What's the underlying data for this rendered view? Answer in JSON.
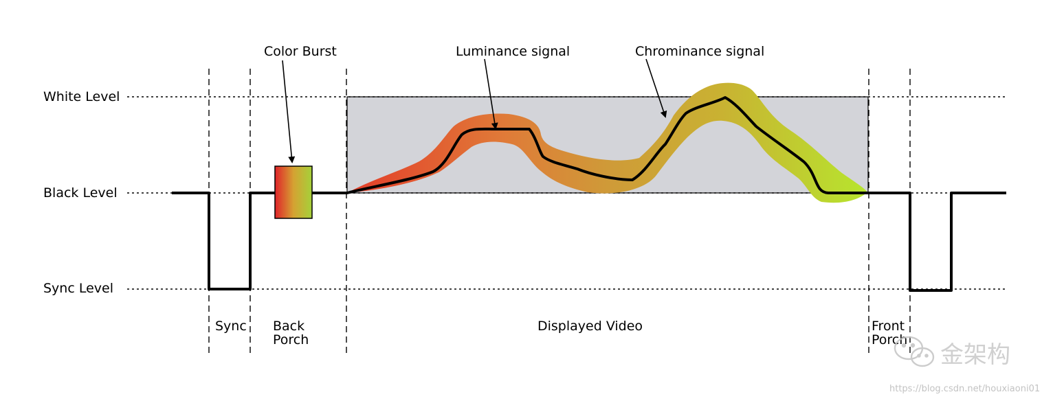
{
  "levels": {
    "white": "White Level",
    "black": "Black Level",
    "sync": "Sync Level"
  },
  "callouts": {
    "color_burst": "Color Burst",
    "luminance": "Luminance signal",
    "chrominance": "Chrominance signal"
  },
  "sections": {
    "sync": "Sync",
    "back_porch_line1": "Back",
    "back_porch_line2": "Porch",
    "displayed_video": "Displayed Video",
    "front_porch_line1": "Front",
    "front_porch_line2": "Porch"
  },
  "watermark": {
    "name": "金架构",
    "url": "https://blog.csdn.net/houxiaoni01",
    "icon": "wechat-icon"
  },
  "colors": {
    "signal": "#000000",
    "video_region": "#d3d4d9",
    "chroma_start": "#e33d2a",
    "chroma_mid": "#cf9a38",
    "chroma_end": "#b7e52e",
    "burst_start": "#e0232a",
    "burst_end": "#a5d13a"
  }
}
